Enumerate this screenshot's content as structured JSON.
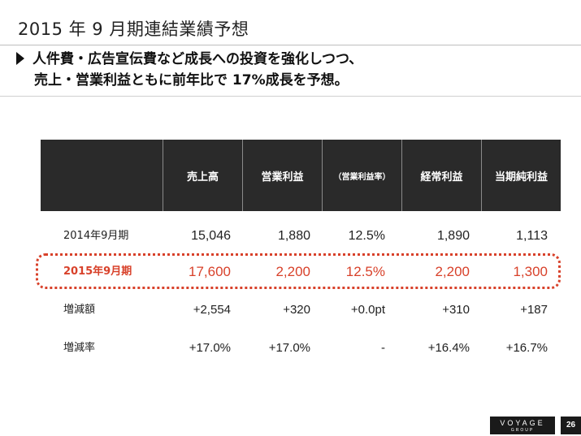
{
  "title": "2015 年 9 月期連結業績予想",
  "headline": {
    "line1": "人件費・広告宣伝費など成長への投資を強化しつつ、",
    "line2": "売上・営業利益ともに前年比で 17%成長を予想。"
  },
  "table": {
    "headers": [
      "売上高",
      "営業利益",
      "（営業利益率）",
      "経常利益",
      "当期純利益"
    ],
    "rows": [
      {
        "label": "2014年9月期",
        "values": [
          "15,046",
          "1,880",
          "12.5%",
          "1,890",
          "1,113"
        ]
      },
      {
        "label": "2015年9月期",
        "values": [
          "17,600",
          "2,200",
          "12.5%",
          "2,200",
          "1,300"
        ]
      },
      {
        "label": "増減額",
        "values": [
          "+2,554",
          "+320",
          "+0.0pt",
          "+310",
          "+187"
        ]
      },
      {
        "label": "増減率",
        "values": [
          "+17.0%",
          "+17.0%",
          "-",
          "+16.4%",
          "+16.7%"
        ]
      }
    ]
  },
  "colors": {
    "highlight": "#d8412a",
    "header_bg": "#2a2a2a"
  },
  "footer": {
    "logo": "VOYAGE",
    "logo_sub": "GROUP",
    "page": "26"
  }
}
